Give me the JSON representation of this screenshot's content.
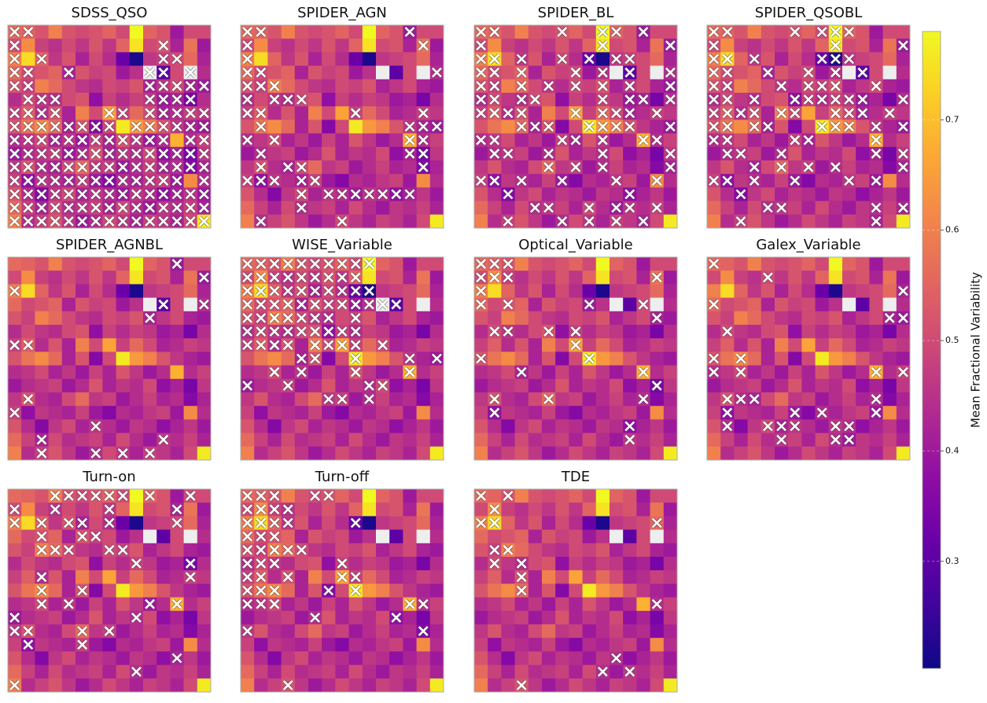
{
  "chart_data": {
    "type": "heatmap-grid",
    "colormap": "plasma",
    "zlim": [
      0.203,
      0.78
    ],
    "colorbar_label": "Mean Fractional Variability",
    "colorbar_ticks": [
      0.3,
      0.4,
      0.5,
      0.6,
      0.7
    ],
    "values": [
      [
        0.56,
        0.55,
        0.52,
        0.6,
        0.52,
        0.5,
        0.52,
        0.55,
        0.5,
        0.78,
        0.55,
        0.52,
        0.4,
        0.5,
        0.5
      ],
      [
        0.5,
        0.62,
        0.48,
        0.45,
        0.5,
        0.46,
        0.52,
        0.46,
        0.55,
        0.75,
        0.5,
        0.52,
        0.42,
        0.58,
        0.4
      ],
      [
        0.6,
        0.74,
        0.55,
        0.46,
        0.52,
        0.42,
        0.5,
        0.44,
        0.32,
        0.22,
        0.46,
        0.48,
        0.5,
        0.56,
        0.42
      ],
      [
        0.56,
        0.5,
        0.52,
        0.55,
        0.42,
        0.52,
        0.48,
        0.5,
        0.4,
        0.45,
        null,
        0.3,
        0.5,
        null,
        0.44
      ],
      [
        0.52,
        0.48,
        0.6,
        0.56,
        0.5,
        0.46,
        0.44,
        0.5,
        0.48,
        0.52,
        0.42,
        0.46,
        0.5,
        0.42,
        0.4
      ],
      [
        0.44,
        0.5,
        0.46,
        0.44,
        0.5,
        0.52,
        0.38,
        0.48,
        0.44,
        0.48,
        0.46,
        0.4,
        0.42,
        0.34,
        0.44
      ],
      [
        0.48,
        0.54,
        0.44,
        0.52,
        0.42,
        0.6,
        0.5,
        0.66,
        0.48,
        0.56,
        0.5,
        0.42,
        0.44,
        0.48,
        0.46
      ],
      [
        0.52,
        0.58,
        0.62,
        0.56,
        0.42,
        0.52,
        0.36,
        0.5,
        0.76,
        0.64,
        0.6,
        0.52,
        0.46,
        0.42,
        0.4
      ],
      [
        0.44,
        0.46,
        0.5,
        0.42,
        0.46,
        0.4,
        0.48,
        0.42,
        0.52,
        0.46,
        0.4,
        0.44,
        0.68,
        0.44,
        0.48
      ],
      [
        0.4,
        0.44,
        0.46,
        0.48,
        0.4,
        0.44,
        0.52,
        0.42,
        0.46,
        0.44,
        0.5,
        0.38,
        0.42,
        0.34,
        0.46
      ],
      [
        0.46,
        0.52,
        0.44,
        0.42,
        0.5,
        0.56,
        0.46,
        0.48,
        0.4,
        0.44,
        0.48,
        0.42,
        0.44,
        0.36,
        0.42
      ],
      [
        0.48,
        0.38,
        0.46,
        0.44,
        0.42,
        0.48,
        0.4,
        0.36,
        0.44,
        0.42,
        0.46,
        0.48,
        0.4,
        0.62,
        0.44
      ],
      [
        0.52,
        0.44,
        0.36,
        0.46,
        0.5,
        0.42,
        0.46,
        0.44,
        0.4,
        0.46,
        0.44,
        0.38,
        0.42,
        0.46,
        0.4
      ],
      [
        0.56,
        0.48,
        0.42,
        0.5,
        0.44,
        0.46,
        0.48,
        0.42,
        0.5,
        0.44,
        0.4,
        0.46,
        0.44,
        0.48,
        0.42
      ],
      [
        0.6,
        0.44,
        0.48,
        0.52,
        0.46,
        0.4,
        0.44,
        0.5,
        0.46,
        0.42,
        0.48,
        0.46,
        0.42,
        0.5,
        0.76
      ]
    ],
    "panels": [
      {
        "title": "SDSS_QSO",
        "marked": [
          [
            0,
            1
          ],
          [
            0,
            11
          ],
          [
            0,
            2,
            11,
            12
          ],
          [
            0,
            1,
            4,
            10,
            11,
            13
          ],
          [
            0,
            1,
            10,
            11,
            12,
            13,
            14
          ],
          [
            1,
            2,
            3,
            10,
            11,
            12,
            13
          ],
          [
            0,
            1,
            2,
            3,
            7,
            8,
            10,
            11,
            12,
            13,
            14
          ],
          [
            0,
            1,
            2,
            3,
            4,
            5,
            6,
            7,
            9,
            10,
            11,
            12,
            13,
            14
          ],
          [
            0,
            1,
            2,
            3,
            4,
            5,
            6,
            7,
            8,
            9,
            10,
            11,
            13,
            14
          ],
          [
            0,
            1,
            2,
            3,
            4,
            5,
            6,
            7,
            8,
            9,
            10,
            11,
            12,
            13,
            14
          ],
          [
            0,
            1,
            2,
            3,
            4,
            5,
            6,
            7,
            8,
            9,
            10,
            11,
            12,
            13,
            14
          ],
          [
            0,
            1,
            2,
            3,
            4,
            5,
            6,
            7,
            8,
            9,
            10,
            11,
            12,
            14
          ],
          [
            0,
            1,
            2,
            3,
            4,
            5,
            6,
            7,
            8,
            9,
            10,
            11,
            12,
            13,
            14
          ],
          [
            0,
            1,
            2,
            3,
            4,
            5,
            6,
            7,
            8,
            9,
            10,
            11,
            12,
            13,
            14
          ],
          [
            0,
            1,
            2,
            3,
            4,
            5,
            6,
            7,
            8,
            9,
            10,
            11,
            12,
            13,
            14
          ]
        ]
      },
      {
        "title": "SPIDER_AGN",
        "marked": [
          [
            0,
            1,
            12
          ],
          [
            0,
            13
          ],
          [
            0
          ],
          [
            0,
            1,
            14
          ],
          [
            0,
            1,
            2
          ],
          [
            0,
            2,
            3,
            4
          ],
          [
            0,
            1,
            8,
            13
          ],
          [
            1,
            12,
            13,
            14
          ],
          [
            0,
            2,
            12,
            13
          ],
          [
            1,
            12,
            13
          ],
          [
            1,
            3,
            4,
            13
          ],
          [
            0,
            1,
            2,
            4,
            5
          ],
          [
            4,
            6,
            7,
            8,
            9,
            10,
            11,
            12
          ],
          [
            4
          ],
          [
            1,
            7
          ]
        ]
      },
      {
        "title": "SPIDER_BL",
        "marked": [
          [
            0,
            1,
            6,
            9,
            10,
            12
          ],
          [
            0,
            9,
            14
          ],
          [
            0,
            1,
            3,
            6,
            8,
            10,
            11
          ],
          [
            0,
            1,
            3,
            7,
            9,
            11,
            14
          ],
          [
            0,
            1,
            3,
            5,
            7,
            9,
            11,
            14
          ],
          [
            0,
            1,
            3,
            4,
            9,
            11,
            12,
            14
          ],
          [
            0,
            1,
            2,
            3,
            7,
            9,
            10,
            11,
            13
          ],
          [
            3,
            4,
            5,
            8,
            9,
            10,
            11,
            14
          ],
          [
            0,
            1,
            6,
            7,
            9,
            12,
            13
          ],
          [
            1,
            2,
            5,
            9,
            14
          ],
          [
            5,
            7,
            9,
            14
          ],
          [
            0,
            1,
            3,
            6,
            10,
            13
          ],
          [
            2,
            11
          ],
          [
            4,
            5,
            8,
            10,
            11,
            13
          ],
          [
            2,
            6,
            8,
            10,
            12
          ]
        ]
      },
      {
        "title": "SPIDER_QSOBL",
        "marked": [
          [
            0,
            1,
            6,
            8,
            9,
            10
          ],
          [
            0,
            9,
            14
          ],
          [
            0,
            1,
            3,
            8,
            9,
            10
          ],
          [
            0,
            1,
            4,
            7,
            9,
            11
          ],
          [
            0,
            1,
            5,
            7,
            8,
            9,
            12
          ],
          [
            0,
            1,
            3,
            6,
            7,
            8,
            9,
            10,
            11,
            14
          ],
          [
            0,
            1,
            2,
            3,
            5,
            6,
            9,
            10,
            11,
            13
          ],
          [
            0,
            1,
            3,
            4,
            8,
            9,
            10,
            12,
            14
          ],
          [
            0,
            1,
            6,
            7,
            12
          ],
          [
            1,
            2,
            5,
            12,
            14
          ],
          [
            3,
            5,
            7,
            9,
            14
          ],
          [
            0,
            1,
            3,
            6,
            10,
            12
          ],
          [
            2
          ],
          [
            4,
            5,
            12,
            14
          ],
          [
            2,
            12
          ]
        ]
      },
      {
        "title": "SPIDER_AGNBL",
        "marked": [
          [
            12
          ],
          [
            14
          ],
          [
            0
          ],
          [
            11,
            14
          ],
          [
            10
          ],
          [],
          [
            0,
            1
          ],
          [],
          [],
          [],
          [
            1
          ],
          [
            0
          ],
          [
            6
          ],
          [
            2,
            11
          ],
          [
            2,
            6,
            8,
            10
          ]
        ]
      },
      {
        "title": "WISE_Variable",
        "marked": [
          [
            0,
            1,
            2,
            3,
            4,
            5,
            6,
            7,
            8,
            9
          ],
          [
            0,
            1,
            2,
            3,
            4,
            5,
            6,
            7,
            8
          ],
          [
            0,
            1,
            2,
            3,
            4,
            5,
            6,
            7,
            8,
            9
          ],
          [
            0,
            1,
            2,
            3,
            4,
            5,
            6,
            7,
            8,
            9,
            10,
            11
          ],
          [
            0,
            1,
            2,
            3,
            4,
            5,
            6,
            8
          ],
          [
            0,
            1,
            2,
            3,
            4,
            5,
            6,
            7,
            8
          ],
          [
            0,
            1,
            2,
            3,
            5,
            6,
            7,
            8,
            10
          ],
          [
            4,
            5,
            8,
            12,
            14
          ],
          [
            2,
            4,
            8,
            12
          ],
          [
            0,
            3,
            9,
            10
          ],
          [
            6,
            7,
            9
          ],
          [],
          [],
          [],
          []
        ]
      },
      {
        "title": "Optical_Variable",
        "marked": [
          [
            0,
            1,
            2
          ],
          [
            0,
            1,
            2,
            13
          ],
          [
            0
          ],
          [
            0,
            2,
            8,
            12
          ],
          [
            13
          ],
          [
            1,
            2,
            5,
            7
          ],
          [
            7
          ],
          [
            0,
            8
          ],
          [
            3,
            12
          ],
          [
            13
          ],
          [
            1,
            5,
            12
          ],
          [
            1
          ],
          [
            11
          ],
          [
            11
          ],
          []
        ]
      },
      {
        "title": "Galex_Variable",
        "marked": [
          [
            0
          ],
          [
            4
          ],
          [
            14
          ],
          [
            0
          ],
          [
            13,
            14
          ],
          [
            1
          ],
          [],
          [
            0,
            2
          ],
          [
            0,
            2,
            12,
            14
          ],
          [],
          [
            1,
            2,
            3,
            12
          ],
          [
            1,
            6,
            8,
            12
          ],
          [
            1,
            4,
            5,
            6,
            9,
            10
          ],
          [
            5,
            9,
            10
          ],
          []
        ]
      },
      {
        "title": "Turn-on",
        "marked": [
          [
            3,
            4,
            5,
            6,
            7,
            8,
            10,
            13
          ],
          [
            0,
            3,
            7,
            12
          ],
          [
            0,
            2,
            4,
            5,
            7,
            12
          ],
          [
            2,
            5,
            6
          ],
          [
            2,
            3,
            4,
            7,
            8
          ],
          [
            9,
            13
          ],
          [
            2,
            13
          ],
          [
            2,
            5
          ],
          [
            2,
            4,
            10,
            12
          ],
          [
            0,
            9
          ],
          [
            0,
            1,
            5,
            7
          ],
          [
            1,
            5
          ],
          [
            12
          ],
          [
            9
          ],
          [
            0
          ]
        ]
      },
      {
        "title": "Turn-off",
        "marked": [
          [
            0,
            1,
            2,
            5,
            6
          ],
          [
            0,
            1,
            2,
            3
          ],
          [
            0,
            1,
            2,
            3,
            8
          ],
          [
            0,
            1,
            2
          ],
          [
            0,
            1,
            2,
            3,
            4
          ],
          [
            0,
            1,
            2,
            7
          ],
          [
            0,
            1,
            3,
            7,
            8
          ],
          [
            0,
            1,
            2,
            6,
            8
          ],
          [
            0,
            1,
            2,
            12,
            13
          ],
          [
            5,
            11
          ],
          [
            0,
            13
          ],
          [],
          [],
          [],
          [
            3
          ]
        ]
      },
      {
        "title": "TDE",
        "marked": [
          [
            0,
            2
          ],
          [
            1
          ],
          [
            0,
            1,
            13
          ],
          [],
          [
            1,
            2
          ],
          [
            1,
            3
          ],
          [
            3
          ],
          [
            3
          ],
          [
            13
          ],
          [],
          [],
          [],
          [
            10
          ],
          [
            9,
            11
          ],
          [
            3
          ]
        ]
      }
    ]
  }
}
